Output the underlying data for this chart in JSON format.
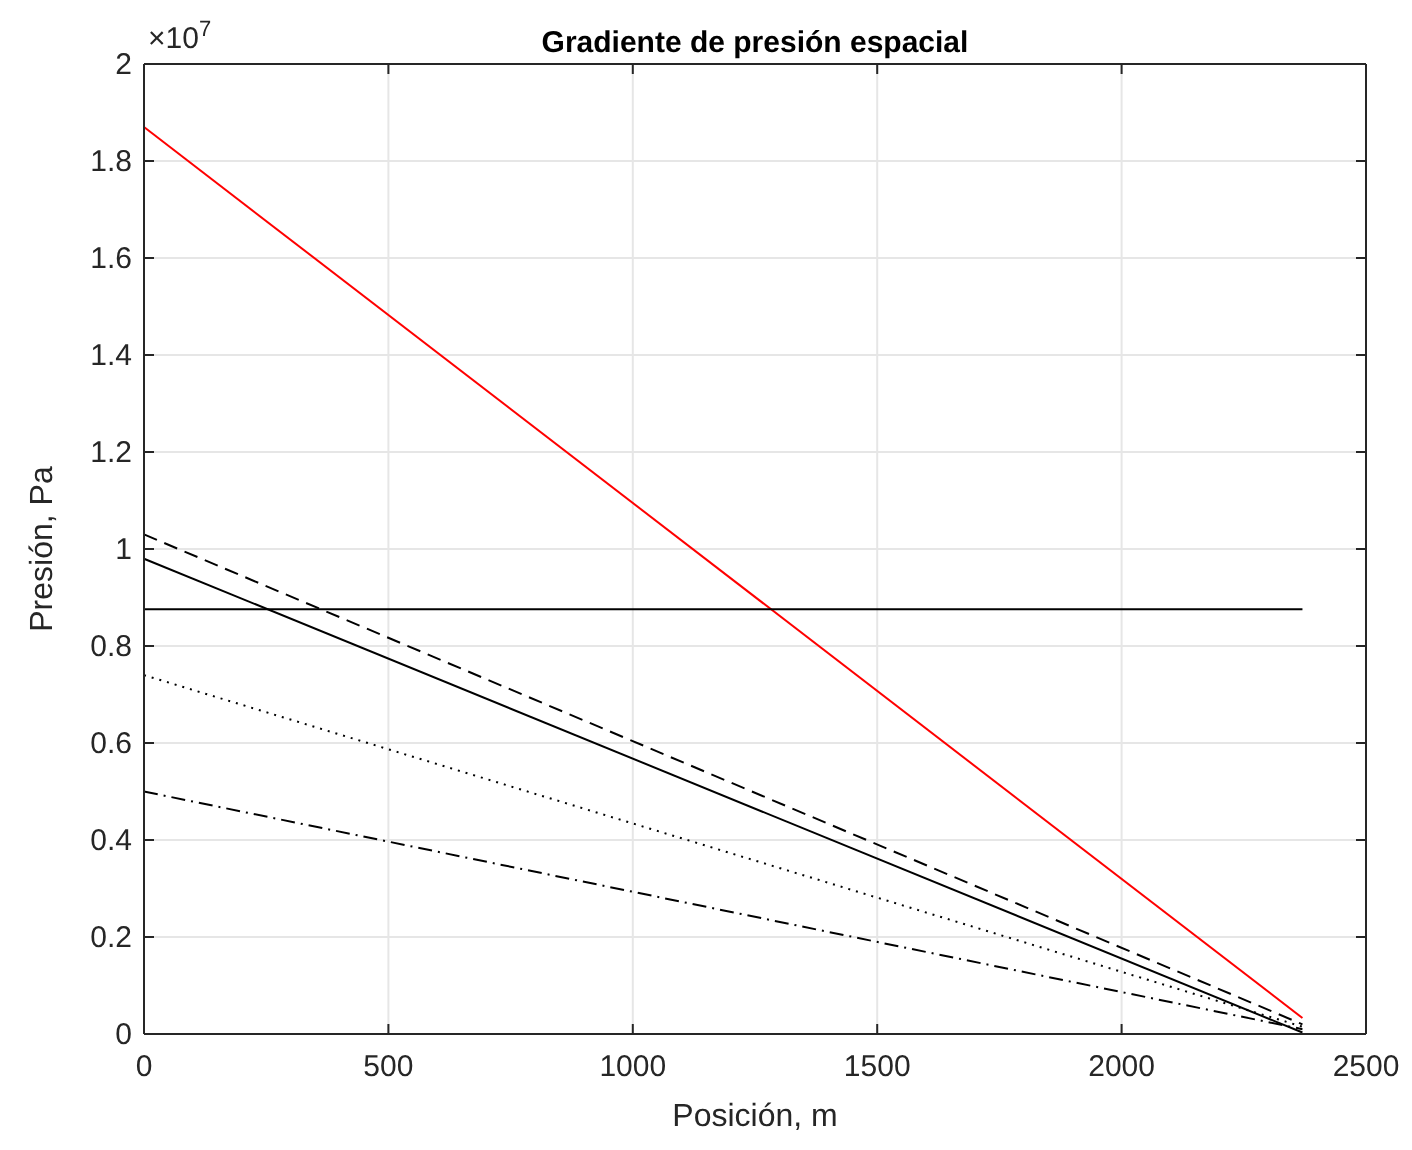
{
  "chart_data": {
    "type": "line",
    "title": "Gradiente de presión espacial",
    "xlabel": "Posición, m",
    "ylabel": "Presión, Pa",
    "annotations": [
      "×10$^{7}$"
    ],
    "x": [
      0,
      2370
    ],
    "series": [
      {
        "color": "#ff0000",
        "values": [
          1.87,
          0.033
        ],
        "line_style": "solid"
      },
      {
        "color": "#000000",
        "values": [
          0.876,
          0.876
        ],
        "line_style": "solid"
      },
      {
        "color": "#000000",
        "values": [
          1.03,
          0.02
        ],
        "line_style": "dashed"
      },
      {
        "color": "#000000",
        "values": [
          0.98,
          0.003
        ],
        "line_style": "solid"
      },
      {
        "color": "#000000",
        "values": [
          0.74,
          0.015
        ],
        "line_style": "dotted"
      },
      {
        "color": "#000000",
        "values": [
          0.5,
          0.01
        ],
        "line_style": "dashdot"
      }
    ],
    "xlim": [
      0,
      2500
    ],
    "xticks": [
      0,
      500,
      1000,
      1500,
      2000,
      2500
    ],
    "ylim": [
      0,
      2
    ],
    "yticks": [
      0,
      0.2,
      0.4,
      0.6,
      0.8,
      1,
      1.2,
      1.4,
      1.6,
      1.8,
      2
    ],
    "grid": true
  }
}
